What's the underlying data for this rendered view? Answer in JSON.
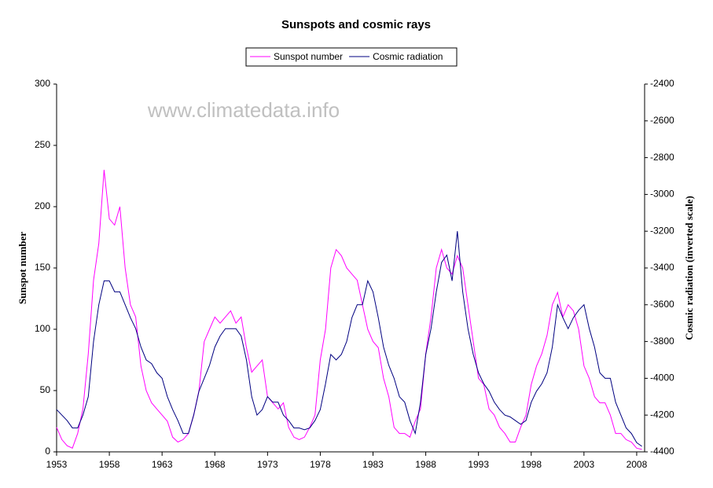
{
  "chart_data": {
    "type": "line",
    "title": "Sunspots and cosmic rays",
    "annotation": "www.climatedata.info",
    "ylabel": "Sunspot number",
    "y2label": "Cosmic radiation (inverted scale)",
    "x": [
      1953,
      1953.5,
      1954,
      1954.5,
      1955,
      1955.5,
      1956,
      1956.5,
      1957,
      1957.5,
      1958,
      1958.5,
      1959,
      1959.5,
      1960,
      1960.5,
      1961,
      1961.5,
      1962,
      1962.5,
      1963,
      1963.5,
      1964,
      1964.5,
      1965,
      1965.5,
      1966,
      1966.5,
      1967,
      1967.5,
      1968,
      1968.5,
      1969,
      1969.5,
      1970,
      1970.5,
      1971,
      1971.5,
      1972,
      1972.5,
      1973,
      1973.5,
      1974,
      1974.5,
      1975,
      1975.5,
      1976,
      1976.5,
      1977,
      1977.5,
      1978,
      1978.5,
      1979,
      1979.5,
      1980,
      1980.5,
      1981,
      1981.5,
      1982,
      1982.5,
      1983,
      1983.5,
      1984,
      1984.5,
      1985,
      1985.5,
      1986,
      1986.5,
      1987,
      1987.5,
      1988,
      1988.5,
      1989,
      1989.5,
      1990,
      1990.5,
      1991,
      1991.5,
      1992,
      1992.5,
      1993,
      1993.5,
      1994,
      1994.5,
      1995,
      1995.5,
      1996,
      1996.5,
      1997,
      1997.5,
      1998,
      1998.5,
      1999,
      1999.5,
      2000,
      2000.5,
      2001,
      2001.5,
      2002,
      2002.5,
      2003,
      2003.5,
      2004,
      2004.5,
      2005,
      2005.5,
      2006,
      2006.5,
      2007,
      2007.5,
      2008,
      2008.5
    ],
    "series": [
      {
        "name": "Sunspot number",
        "color": "#ff00ff",
        "values": [
          20,
          10,
          5,
          3,
          15,
          35,
          80,
          140,
          170,
          230,
          190,
          185,
          200,
          150,
          120,
          110,
          70,
          50,
          40,
          35,
          30,
          25,
          12,
          8,
          10,
          15,
          30,
          50,
          90,
          100,
          110,
          105,
          110,
          115,
          105,
          110,
          85,
          65,
          70,
          75,
          45,
          40,
          35,
          40,
          20,
          12,
          10,
          12,
          20,
          30,
          75,
          100,
          150,
          165,
          160,
          150,
          145,
          140,
          120,
          100,
          90,
          85,
          60,
          45,
          20,
          15,
          15,
          12,
          25,
          35,
          80,
          110,
          150,
          165,
          150,
          145,
          160,
          150,
          120,
          90,
          60,
          55,
          35,
          30,
          20,
          15,
          8,
          8,
          20,
          30,
          55,
          70,
          80,
          95,
          120,
          130,
          110,
          120,
          115,
          100,
          70,
          60,
          45,
          40,
          40,
          30,
          15,
          15,
          10,
          8,
          3,
          2
        ]
      },
      {
        "name": "Cosmic radiation",
        "color": "#000080",
        "axis": "y2",
        "values": [
          -4170,
          -4200,
          -4230,
          -4270,
          -4270,
          -4200,
          -4100,
          -3800,
          -3600,
          -3470,
          -3470,
          -3530,
          -3530,
          -3600,
          -3670,
          -3730,
          -3830,
          -3900,
          -3920,
          -3970,
          -4000,
          -4100,
          -4170,
          -4230,
          -4300,
          -4300,
          -4200,
          -4070,
          -4000,
          -3930,
          -3830,
          -3770,
          -3730,
          -3730,
          -3730,
          -3770,
          -3900,
          -4100,
          -4200,
          -4170,
          -4100,
          -4130,
          -4130,
          -4200,
          -4230,
          -4270,
          -4270,
          -4280,
          -4270,
          -4230,
          -4170,
          -4030,
          -3870,
          -3900,
          -3870,
          -3800,
          -3670,
          -3600,
          -3600,
          -3470,
          -3530,
          -3670,
          -3830,
          -3930,
          -4000,
          -4100,
          -4130,
          -4230,
          -4300,
          -4130,
          -3870,
          -3730,
          -3530,
          -3370,
          -3330,
          -3470,
          -3200,
          -3530,
          -3730,
          -3870,
          -3970,
          -4030,
          -4070,
          -4130,
          -4170,
          -4200,
          -4210,
          -4230,
          -4250,
          -4230,
          -4130,
          -4070,
          -4030,
          -3970,
          -3830,
          -3600,
          -3670,
          -3730,
          -3670,
          -3630,
          -3600,
          -3730,
          -3830,
          -3970,
          -4000,
          -4000,
          -4130,
          -4200,
          -4270,
          -4300,
          -4350,
          -4370
        ]
      }
    ],
    "xlim": [
      1953,
      2008.75
    ],
    "xticks": [
      1953,
      1958,
      1963,
      1968,
      1973,
      1978,
      1983,
      1988,
      1993,
      1998,
      2003,
      2008
    ],
    "ylim": [
      0,
      300
    ],
    "yticks": [
      0,
      50,
      100,
      150,
      200,
      250,
      300
    ],
    "y2lim": [
      -4400,
      -2400
    ],
    "y2ticks": [
      -4400,
      -4200,
      -4000,
      -3800,
      -3600,
      -3400,
      -3200,
      -3000,
      -2800,
      -2600,
      -2400
    ],
    "grid": false,
    "legend": "top"
  }
}
